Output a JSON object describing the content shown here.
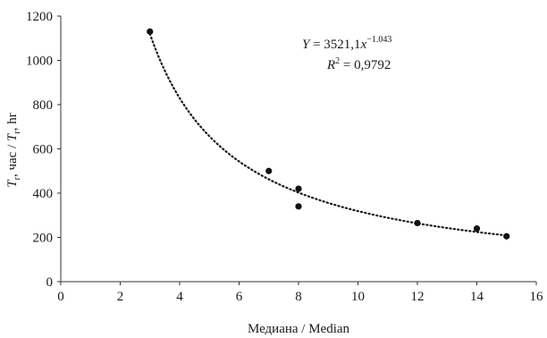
{
  "chart_data": {
    "type": "scatter",
    "xlabel": "Медиана / Median",
    "ylabel": {
      "parts": [
        {
          "text": "T",
          "style": "italic"
        },
        {
          "text": "r",
          "style": "sub"
        },
        {
          "text": ", час / ",
          "style": "normal"
        },
        {
          "text": "T",
          "style": "italic"
        },
        {
          "text": "r",
          "style": "sub"
        },
        {
          "text": ", hr",
          "style": "normal"
        }
      ]
    },
    "xlim": [
      0,
      16
    ],
    "ylim": [
      0,
      1200
    ],
    "x_ticks": [
      0,
      2,
      4,
      6,
      8,
      10,
      12,
      14,
      16
    ],
    "y_ticks": [
      0,
      200,
      400,
      600,
      800,
      1000,
      1200
    ],
    "grid": false,
    "points": [
      {
        "x": 3,
        "y": 1130
      },
      {
        "x": 7,
        "y": 500
      },
      {
        "x": 8,
        "y": 420
      },
      {
        "x": 8,
        "y": 340
      },
      {
        "x": 12,
        "y": 265
      },
      {
        "x": 14,
        "y": 240
      },
      {
        "x": 15,
        "y": 205
      }
    ],
    "trendline": {
      "type": "power",
      "coefficient": 3521.1,
      "exponent": -1.043,
      "x_range": [
        3,
        15
      ],
      "style": "dotted"
    },
    "annotations": {
      "equation": {
        "var": "Y",
        "rhs_prefix": " = 3521,1",
        "x_var": "x",
        "exponent": "−1.043"
      },
      "r2": {
        "var": "R",
        "sup": "2",
        "rhs": " = 0,9792"
      }
    }
  }
}
